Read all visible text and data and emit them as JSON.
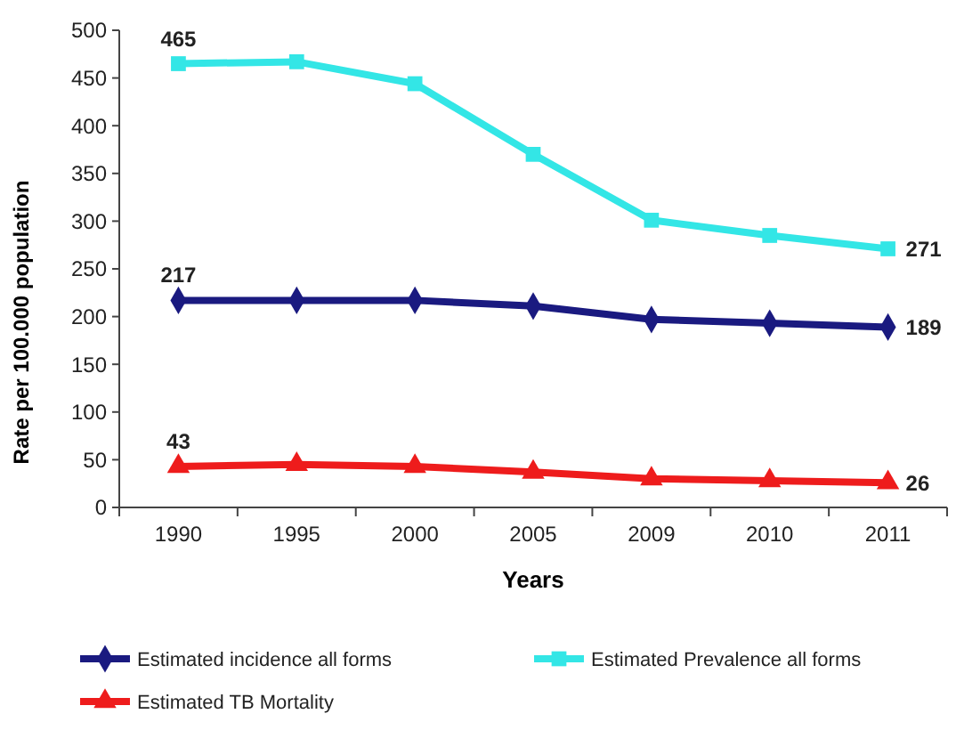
{
  "chart_data": {
    "type": "line",
    "xlabel": "Years",
    "ylabel": "Rate per 100.000 population",
    "categories": [
      "1990",
      "1995",
      "2000",
      "2005",
      "2009",
      "2010",
      "2011"
    ],
    "ylim": [
      0,
      500
    ],
    "yticks": [
      0,
      50,
      100,
      150,
      200,
      250,
      300,
      350,
      400,
      450,
      500
    ],
    "grid": false,
    "legend": "bottom",
    "series": [
      {
        "name": "Estimated incidence all forms",
        "color": "#1a1a80",
        "marker": "diamond",
        "values": [
          217,
          217,
          217,
          211,
          197,
          193,
          189
        ],
        "value_labels": [
          "217",
          null,
          null,
          null,
          null,
          null,
          "189"
        ]
      },
      {
        "name": "Estimated Prevalence all forms",
        "color": "#33e6e6",
        "marker": "square",
        "values": [
          465,
          467,
          444,
          370,
          301,
          285,
          271
        ],
        "value_labels": [
          "465",
          null,
          null,
          null,
          null,
          null,
          "271"
        ]
      },
      {
        "name": "Estimated TB Mortality",
        "color": "#ee1c1c",
        "marker": "triangle",
        "values": [
          43,
          45,
          43,
          37,
          30,
          28,
          26
        ],
        "value_labels": [
          "43",
          null,
          null,
          null,
          null,
          null,
          "26"
        ]
      }
    ]
  }
}
